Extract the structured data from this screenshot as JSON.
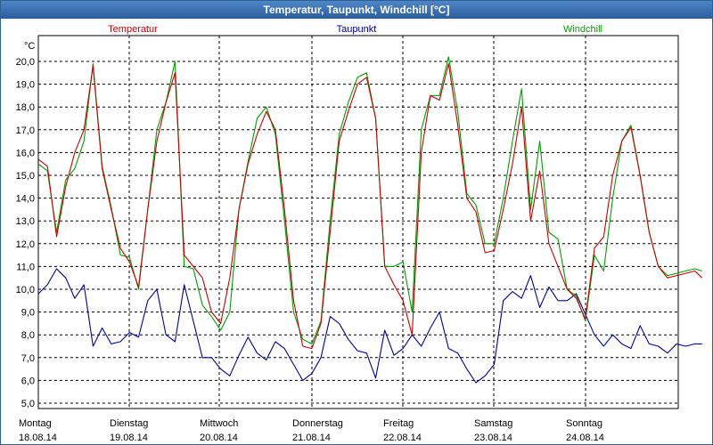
{
  "window": {
    "title": "Temperatur, Taupunkt, Windchill [°C]"
  },
  "colors": {
    "temperature": "#cc0000",
    "dewpoint": "#00009c",
    "windchill": "#00a000",
    "grid": "#000000"
  },
  "chart_data": {
    "type": "line",
    "title": "Temperatur, Taupunkt, Windchill [°C]",
    "ylabel": "°C",
    "xlabel": "",
    "ylim": [
      5.0,
      20.0
    ],
    "grid": true,
    "yticks": [
      "5,0",
      "6,0",
      "7,0",
      "8,0",
      "9,0",
      "10,0",
      "11,0",
      "12,0",
      "13,0",
      "14,0",
      "15,0",
      "16,0",
      "17,0",
      "18,0",
      "19,0",
      "20,0"
    ],
    "x_unit": "days since Montag 18.08.14 00:00",
    "xlim": [
      0,
      7.28
    ],
    "day_labels": [
      {
        "weekday": "Montag",
        "date": "18.08.14"
      },
      {
        "weekday": "Dienstag",
        "date": "19.08.14"
      },
      {
        "weekday": "Mittwoch",
        "date": "20.08.14"
      },
      {
        "weekday": "Donnerstag",
        "date": "21.08.14"
      },
      {
        "weekday": "Freitag",
        "date": "22.08.14"
      },
      {
        "weekday": "Samstag",
        "date": "23.08.14"
      },
      {
        "weekday": "Sonntag",
        "date": "24.08.14"
      }
    ],
    "series": [
      {
        "name": "Temperatur",
        "x": [
          0,
          0.1,
          0.2,
          0.3,
          0.4,
          0.5,
          0.6,
          0.7,
          0.8,
          0.9,
          1.0,
          1.1,
          1.2,
          1.3,
          1.4,
          1.5,
          1.6,
          1.7,
          1.8,
          1.9,
          2.0,
          2.1,
          2.2,
          2.3,
          2.4,
          2.5,
          2.6,
          2.7,
          2.8,
          2.9,
          3.0,
          3.1,
          3.2,
          3.3,
          3.4,
          3.5,
          3.6,
          3.7,
          3.8,
          3.9,
          4.0,
          4.1,
          4.2,
          4.3,
          4.4,
          4.5,
          4.6,
          4.7,
          4.8,
          4.9,
          5.0,
          5.1,
          5.2,
          5.3,
          5.4,
          5.5,
          5.6,
          5.7,
          5.8,
          5.9,
          6.0,
          6.1,
          6.2,
          6.3,
          6.4,
          6.5,
          6.6,
          6.7,
          6.8,
          6.9,
          7.0,
          7.1,
          7.2,
          7.28
        ],
        "values": [
          15.7,
          15.4,
          12.3,
          14.5,
          16.0,
          17.0,
          19.8,
          15.3,
          13.5,
          11.8,
          11.2,
          10.1,
          13.5,
          16.5,
          18.2,
          19.5,
          11.5,
          11.0,
          10.5,
          9.0,
          8.5,
          10.5,
          13.5,
          15.5,
          16.8,
          17.8,
          17.0,
          13.5,
          9.5,
          7.5,
          7.4,
          8.5,
          12.5,
          16.5,
          17.8,
          19.0,
          19.3,
          17.5,
          11.0,
          10.2,
          9.5,
          8.0,
          16.0,
          18.5,
          18.3,
          19.9,
          17.2,
          14.0,
          13.4,
          11.6,
          11.7,
          13.5,
          15.5,
          18.0,
          13.0,
          15.2,
          12.0,
          11.0,
          10.0,
          9.6,
          8.7,
          11.8,
          12.3,
          15.0,
          16.5,
          17.1,
          15.0,
          12.5,
          11.0,
          10.5,
          10.6,
          10.7,
          10.8,
          10.5
        ]
      },
      {
        "name": "Taupunkt",
        "x": [
          0,
          0.1,
          0.2,
          0.3,
          0.4,
          0.5,
          0.6,
          0.7,
          0.8,
          0.9,
          1.0,
          1.1,
          1.2,
          1.3,
          1.4,
          1.5,
          1.6,
          1.7,
          1.8,
          1.9,
          2.0,
          2.1,
          2.2,
          2.3,
          2.4,
          2.5,
          2.6,
          2.7,
          2.8,
          2.9,
          3.0,
          3.1,
          3.2,
          3.3,
          3.4,
          3.5,
          3.6,
          3.7,
          3.8,
          3.9,
          4.0,
          4.1,
          4.2,
          4.3,
          4.4,
          4.5,
          4.6,
          4.7,
          4.8,
          4.9,
          5.0,
          5.1,
          5.2,
          5.3,
          5.4,
          5.5,
          5.6,
          5.7,
          5.8,
          5.9,
          6.0,
          6.1,
          6.2,
          6.3,
          6.4,
          6.5,
          6.6,
          6.7,
          6.8,
          6.9,
          7.0,
          7.1,
          7.2,
          7.28
        ],
        "values": [
          9.8,
          10.2,
          10.9,
          10.5,
          9.6,
          10.2,
          7.5,
          8.3,
          7.6,
          7.7,
          8.1,
          7.9,
          9.5,
          10.0,
          8.0,
          7.7,
          10.2,
          8.6,
          7.0,
          7.0,
          6.5,
          6.2,
          7.1,
          7.9,
          7.2,
          6.9,
          7.7,
          7.4,
          6.7,
          6.0,
          6.3,
          7.0,
          8.8,
          8.5,
          7.8,
          7.3,
          7.2,
          6.1,
          8.2,
          7.1,
          7.4,
          8.0,
          7.5,
          8.3,
          9.0,
          7.4,
          7.2,
          6.5,
          5.9,
          6.2,
          6.7,
          9.5,
          9.9,
          9.6,
          10.6,
          9.2,
          10.1,
          9.5,
          9.5,
          9.8,
          8.9,
          8.0,
          7.5,
          8.0,
          7.6,
          7.4,
          8.4,
          7.6,
          7.5,
          7.2,
          7.6,
          7.5,
          7.6,
          7.6
        ]
      },
      {
        "name": "Windchill",
        "x": [
          0,
          0.1,
          0.2,
          0.3,
          0.4,
          0.5,
          0.6,
          0.7,
          0.8,
          0.9,
          1.0,
          1.1,
          1.2,
          1.3,
          1.4,
          1.5,
          1.6,
          1.7,
          1.8,
          1.9,
          2.0,
          2.1,
          2.2,
          2.3,
          2.4,
          2.5,
          2.6,
          2.7,
          2.8,
          2.9,
          3.0,
          3.1,
          3.2,
          3.3,
          3.4,
          3.5,
          3.6,
          3.7,
          3.8,
          3.9,
          4.0,
          4.1,
          4.2,
          4.3,
          4.4,
          4.5,
          4.6,
          4.7,
          4.8,
          4.9,
          5.0,
          5.1,
          5.2,
          5.3,
          5.4,
          5.5,
          5.6,
          5.7,
          5.8,
          5.9,
          6.0,
          6.1,
          6.2,
          6.3,
          6.4,
          6.5,
          6.6,
          6.7,
          6.8,
          6.9,
          7.0,
          7.1,
          7.2,
          7.28
        ],
        "values": [
          15.5,
          15.2,
          12.5,
          14.8,
          15.3,
          16.5,
          19.9,
          15.4,
          13.6,
          11.5,
          11.4,
          10.0,
          13.5,
          17.0,
          18.2,
          20.0,
          11.0,
          10.9,
          9.3,
          8.8,
          8.2,
          9.0,
          13.5,
          15.6,
          17.5,
          18.0,
          16.8,
          13.0,
          9.0,
          7.8,
          7.6,
          8.6,
          13.0,
          16.8,
          18.2,
          19.3,
          19.5,
          17.5,
          11.0,
          11.0,
          11.2,
          9.0,
          17.0,
          18.5,
          18.5,
          20.2,
          17.8,
          14.2,
          13.7,
          12.0,
          12.0,
          14.0,
          16.5,
          18.8,
          13.5,
          16.5,
          12.5,
          12.2,
          10.0,
          9.7,
          8.6,
          11.5,
          10.8,
          14.0,
          16.5,
          17.2,
          15.0,
          12.5,
          11.0,
          10.6,
          10.7,
          10.8,
          10.9,
          10.8
        ]
      }
    ],
    "legend": "top, above plot",
    "x_tick_labels": "day names with dates"
  }
}
